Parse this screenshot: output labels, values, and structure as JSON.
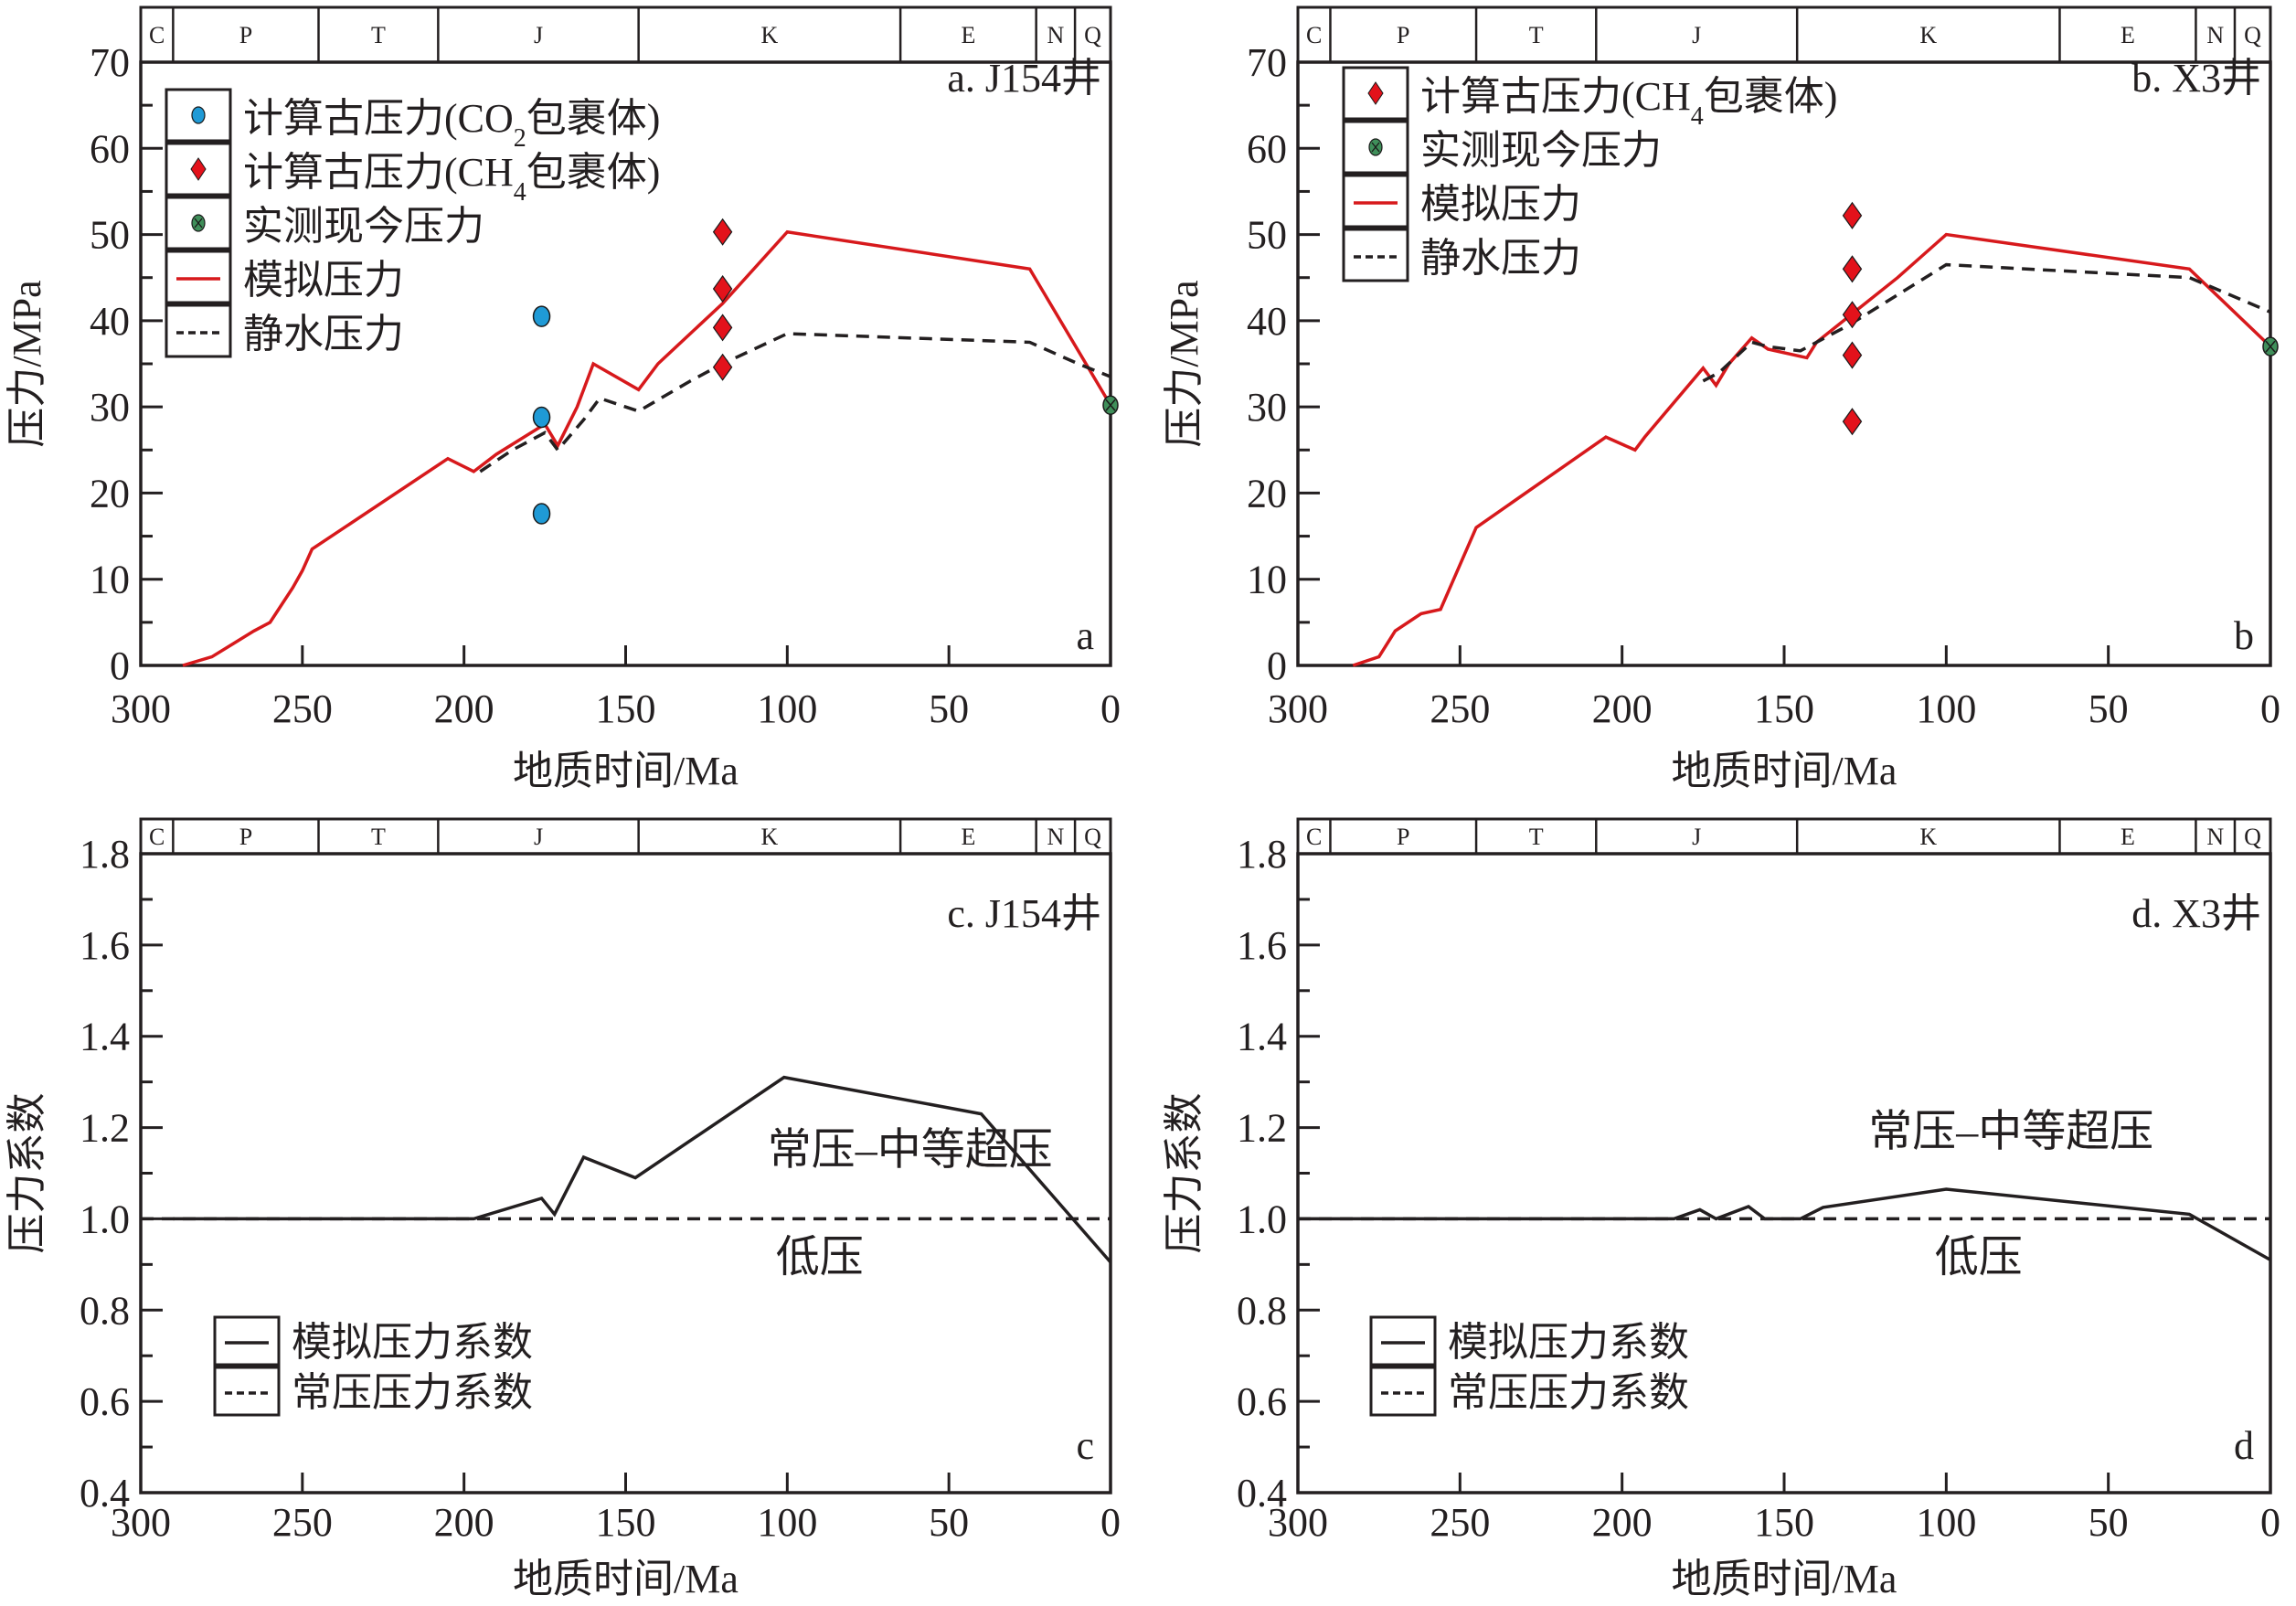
{
  "chart_data": [
    {
      "id": "a",
      "type": "line",
      "title": "a. J154井",
      "corner_label": "a",
      "xlabel": "地质时间/Ma",
      "ylabel": "压力/MPa",
      "xlim": [
        300,
        0
      ],
      "ylim": [
        0,
        70
      ],
      "xticks": [
        "300",
        "250",
        "200",
        "150",
        "100",
        "50",
        "0"
      ],
      "yticks": [
        "0",
        "10",
        "20",
        "30",
        "40",
        "50",
        "60",
        "70"
      ],
      "strata": [
        {
          "label": "C",
          "from": 300,
          "to": 290
        },
        {
          "label": "P",
          "from": 290,
          "to": 245
        },
        {
          "label": "T",
          "from": 245,
          "to": 208
        },
        {
          "label": "J",
          "from": 208,
          "to": 146
        },
        {
          "label": "K",
          "from": 146,
          "to": 65
        },
        {
          "label": "E",
          "from": 65,
          "to": 23
        },
        {
          "label": "N",
          "from": 23,
          "to": 11
        },
        {
          "label": "Q",
          "from": 11,
          "to": 0
        }
      ],
      "legend": [
        {
          "label": "计算古压力(CO",
          "sub": "2",
          "tail": "包裹体)",
          "marker": "circle"
        },
        {
          "label": "计算古压力(CH",
          "sub": "4",
          "tail": "包裹体)",
          "marker": "diamond"
        },
        {
          "label": "实测现今压力",
          "marker": "cross-circle"
        },
        {
          "label": "模拟压力",
          "marker": "solid-line"
        },
        {
          "label": "静水压力",
          "marker": "dashed-line"
        }
      ],
      "series": [
        {
          "name": "模拟压力",
          "style": "solid",
          "color": "#d7191c",
          "x": [
            287,
            278,
            265,
            260,
            253,
            250,
            247,
            205,
            197,
            190,
            175,
            171,
            165,
            160,
            146,
            140,
            120,
            100,
            25,
            0
          ],
          "y": [
            0,
            1,
            4,
            5,
            9,
            11,
            13.5,
            24,
            22.5,
            24.5,
            28,
            25.5,
            30,
            35,
            32,
            35,
            42,
            50.3,
            46,
            30.2
          ]
        },
        {
          "name": "静水压力",
          "style": "dashed",
          "color": "#231f20",
          "x": [
            195,
            185,
            175,
            171,
            163,
            158,
            146,
            130,
            120,
            100,
            25,
            10,
            0
          ],
          "y": [
            22.5,
            25,
            27,
            25,
            28.5,
            31,
            29.5,
            33,
            35,
            38.5,
            37.5,
            35,
            33.5
          ]
        },
        {
          "name": "计算古压力(CO2包裹体)",
          "style": "points",
          "marker": "circle",
          "color": "#1f9ad6",
          "x": [
            176,
            176,
            176
          ],
          "y": [
            40.5,
            28.8,
            17.6
          ]
        },
        {
          "name": "计算古压力(CH4包裹体)",
          "style": "points",
          "marker": "diamond",
          "color": "#e3121b",
          "x": [
            120,
            120,
            120,
            120
          ],
          "y": [
            50.3,
            43.7,
            39.2,
            34.6
          ]
        },
        {
          "name": "实测现今压力",
          "style": "points",
          "marker": "cross-circle",
          "color": "#3f8f5a",
          "x": [
            0
          ],
          "y": [
            30.2
          ]
        }
      ]
    },
    {
      "id": "b",
      "type": "line",
      "title": "b. X3井",
      "corner_label": "b",
      "xlabel": "地质时间/Ma",
      "ylabel": "压力/MPa",
      "xlim": [
        300,
        0
      ],
      "ylim": [
        0,
        70
      ],
      "xticks": [
        "300",
        "250",
        "200",
        "150",
        "100",
        "50",
        "0"
      ],
      "yticks": [
        "0",
        "10",
        "20",
        "30",
        "40",
        "50",
        "60",
        "70"
      ],
      "strata": [
        {
          "label": "C",
          "from": 300,
          "to": 290
        },
        {
          "label": "P",
          "from": 290,
          "to": 245
        },
        {
          "label": "T",
          "from": 245,
          "to": 208
        },
        {
          "label": "J",
          "from": 208,
          "to": 146
        },
        {
          "label": "K",
          "from": 146,
          "to": 65
        },
        {
          "label": "E",
          "from": 65,
          "to": 23
        },
        {
          "label": "N",
          "from": 23,
          "to": 11
        },
        {
          "label": "Q",
          "from": 11,
          "to": 0
        }
      ],
      "legend": [
        {
          "label": "计算古压力(CH",
          "sub": "4",
          "tail": "包裹体)",
          "marker": "diamond"
        },
        {
          "label": "实测现今压力",
          "marker": "cross-circle"
        },
        {
          "label": "模拟压力",
          "marker": "solid-line"
        },
        {
          "label": "静水压力",
          "marker": "dashed-line"
        }
      ],
      "series": [
        {
          "name": "模拟压力",
          "style": "solid",
          "color": "#d7191c",
          "x": [
            283,
            275,
            270,
            262,
            256,
            245,
            205,
            196,
            193,
            175,
            171,
            167,
            160,
            155,
            143,
            140,
            130,
            115,
            103,
            100,
            25,
            0
          ],
          "y": [
            0,
            1,
            4,
            6,
            6.5,
            16,
            26.5,
            25,
            26.5,
            34.5,
            32.5,
            35,
            38,
            36.7,
            35.7,
            37.5,
            40.5,
            45,
            49,
            50,
            46,
            37
          ]
        },
        {
          "name": "静水压力",
          "style": "dashed",
          "color": "#231f20",
          "x": [
            175,
            170,
            160,
            155,
            145,
            130,
            100,
            25,
            0
          ],
          "y": [
            33,
            34,
            37.5,
            37,
            36.5,
            39.5,
            46.5,
            45,
            41
          ]
        },
        {
          "name": "计算古压力(CH4包裹体)",
          "style": "points",
          "marker": "diamond",
          "color": "#e3121b",
          "x": [
            129,
            129,
            129,
            129,
            129
          ],
          "y": [
            52.2,
            46,
            40.7,
            36,
            28.3
          ]
        },
        {
          "name": "实测现今压力",
          "style": "points",
          "marker": "cross-circle",
          "color": "#3f8f5a",
          "x": [
            0
          ],
          "y": [
            37
          ]
        }
      ]
    },
    {
      "id": "c",
      "type": "line",
      "title": "c. J154井",
      "corner_label": "c",
      "xlabel": "地质时间/Ma",
      "ylabel": "压力系数",
      "xlim": [
        300,
        0
      ],
      "ylim": [
        0.4,
        1.8
      ],
      "xticks": [
        "300",
        "250",
        "200",
        "150",
        "100",
        "50",
        "0"
      ],
      "yticks": [
        "0.4",
        "0.6",
        "0.8",
        "1.0",
        "1.2",
        "1.4",
        "1.6",
        "1.8"
      ],
      "region_labels": {
        "upper": "常压–中等超压",
        "lower": "低压"
      },
      "strata": [
        {
          "label": "C",
          "from": 300,
          "to": 290
        },
        {
          "label": "P",
          "from": 290,
          "to": 245
        },
        {
          "label": "T",
          "from": 245,
          "to": 208
        },
        {
          "label": "J",
          "from": 208,
          "to": 146
        },
        {
          "label": "K",
          "from": 146,
          "to": 65
        },
        {
          "label": "E",
          "from": 65,
          "to": 23
        },
        {
          "label": "N",
          "from": 23,
          "to": 11
        },
        {
          "label": "Q",
          "from": 11,
          "to": 0
        }
      ],
      "legend": [
        {
          "label": "模拟压力系数",
          "marker": "solid-line"
        },
        {
          "label": "常压压力系数",
          "marker": "dashed-line"
        }
      ],
      "series": [
        {
          "name": "模拟压力系数",
          "style": "solid",
          "color": "#231f20",
          "x": [
            290,
            197,
            176,
            172,
            163,
            147,
            101,
            40,
            0
          ],
          "y": [
            1.0,
            1.0,
            1.045,
            1.01,
            1.135,
            1.09,
            1.31,
            1.23,
            0.905
          ]
        },
        {
          "name": "常压压力系数",
          "style": "dashed",
          "color": "#231f20",
          "x": [
            300,
            0
          ],
          "y": [
            1.0,
            1.0
          ]
        }
      ]
    },
    {
      "id": "d",
      "type": "line",
      "title": "d. X3井",
      "corner_label": "d",
      "xlabel": "地质时间/Ma",
      "ylabel": "压力系数",
      "xlim": [
        300,
        0
      ],
      "ylim": [
        0.4,
        1.8
      ],
      "xticks": [
        "300",
        "250",
        "200",
        "150",
        "100",
        "50",
        "0"
      ],
      "yticks": [
        "0.4",
        "0.6",
        "0.8",
        "1.0",
        "1.2",
        "1.4",
        "1.6",
        "1.8"
      ],
      "region_labels": {
        "upper": "常压–中等超压",
        "lower": "低压"
      },
      "strata": [
        {
          "label": "C",
          "from": 300,
          "to": 290
        },
        {
          "label": "P",
          "from": 290,
          "to": 245
        },
        {
          "label": "T",
          "from": 245,
          "to": 208
        },
        {
          "label": "J",
          "from": 208,
          "to": 146
        },
        {
          "label": "K",
          "from": 146,
          "to": 65
        },
        {
          "label": "E",
          "from": 65,
          "to": 23
        },
        {
          "label": "N",
          "from": 23,
          "to": 11
        },
        {
          "label": "Q",
          "from": 11,
          "to": 0
        }
      ],
      "legend": [
        {
          "label": "模拟压力系数",
          "marker": "solid-line"
        },
        {
          "label": "常压压力系数",
          "marker": "dashed-line"
        }
      ],
      "series": [
        {
          "name": "模拟压力系数",
          "style": "solid",
          "color": "#231f20",
          "x": [
            300,
            184,
            176,
            171,
            161,
            156,
            145,
            138,
            100,
            25,
            0
          ],
          "y": [
            1.0,
            1.0,
            1.02,
            1.0,
            1.027,
            1.0,
            1.0,
            1.025,
            1.065,
            1.01,
            0.91
          ]
        },
        {
          "name": "常压压力系数",
          "style": "dashed",
          "color": "#231f20",
          "x": [
            300,
            0
          ],
          "y": [
            1.0,
            1.0
          ]
        }
      ]
    }
  ]
}
